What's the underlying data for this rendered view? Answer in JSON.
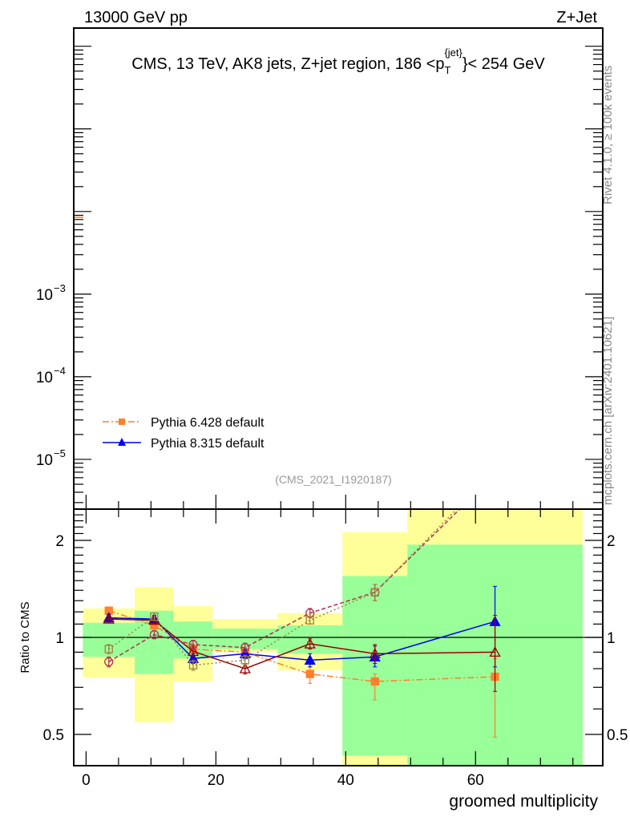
{
  "header": {
    "left": "13000 GeV pp",
    "right": "Z+Jet",
    "side_top": "Rivet 4.1.0, ≥ 100k events",
    "side_bottom": "mcplots.cern.ch [arXiv:2401.10621]"
  },
  "chart_data": {
    "type": "line",
    "title": "CMS, 13 TeV, AK8 jets, Z+jet region, 186 <p_T^{jet}< 254 GeV",
    "title_parts": {
      "pre": "CMS, 13 TeV, AK8 jets, Z+jet region, 186 <p",
      "sup": "{jet}",
      "sub": "T",
      "post": "}< 254 GeV"
    },
    "analysis_id": "(CMS_2021_I1920187)",
    "xlabel": "groomed multiplicity",
    "ylabel_ratio": "Ratio to CMS",
    "xlim": [
      -1.9,
      79.6
    ],
    "ylim_main": [
      2.5e-06,
      1.66
    ],
    "ylim_ratio": [
      0.4,
      2.5
    ],
    "x_ticks": [
      "0",
      "20",
      "40",
      "60"
    ],
    "y_ticks_main": [
      {
        "value": 0.001,
        "base": "10",
        "exp": "−3"
      },
      {
        "value": 0.0001,
        "base": "10",
        "exp": "−4"
      },
      {
        "value": 1e-05,
        "base": "10",
        "exp": "−5"
      }
    ],
    "y_ticks_ratio": [
      "0.5",
      "1",
      "2"
    ],
    "legend_position": "bottom-left",
    "bins": [
      [
        -0.5,
        7.5
      ],
      [
        7.5,
        13.5
      ],
      [
        13.5,
        19.5
      ],
      [
        19.5,
        29.5
      ],
      [
        29.5,
        39.5
      ],
      [
        39.5,
        49.5
      ],
      [
        49.5,
        76.5
      ]
    ],
    "x": [
      3.5,
      10.5,
      16.5,
      24.5,
      34.5,
      44.5,
      63
    ],
    "data_band_total": [
      [
        0.75,
        1.23
      ],
      [
        0.545,
        1.43
      ],
      [
        0.73,
        1.25
      ],
      [
        0.9,
        1.14
      ],
      [
        0.79,
        1.19
      ],
      [
        0.3,
        2.12
      ],
      [
        0.3,
        3.0
      ]
    ],
    "data_band_stat": [
      [
        0.87,
        1.11
      ],
      [
        0.77,
        1.21
      ],
      [
        0.86,
        1.12
      ],
      [
        0.92,
        1.065
      ],
      [
        0.89,
        1.09
      ],
      [
        0.43,
        1.55
      ],
      [
        0.3,
        1.94
      ]
    ],
    "band_colors": {
      "total": "#ffff99",
      "stat": "#99ff99"
    },
    "series": [
      {
        "name": "Pythia 6.428 default",
        "legend": true,
        "color": "#ff7f2a",
        "marker": "square-filled",
        "dash": "8,3,2,3",
        "values": [
          1.21,
          1.09,
          0.92,
          0.9,
          0.77,
          0.73,
          0.755
        ],
        "err": [
          [
            1.18,
            1.24
          ],
          [
            1.06,
            1.12
          ],
          [
            0.89,
            0.95
          ],
          [
            0.87,
            0.93
          ],
          [
            0.72,
            0.81
          ],
          [
            0.64,
            0.77
          ],
          [
            0.49,
            0.86
          ]
        ]
      },
      {
        "name": "Pythia 8.315 default",
        "legend": true,
        "color": "#0000ee",
        "marker": "triangle-filled",
        "dash": "",
        "values": [
          1.15,
          1.14,
          0.86,
          0.89,
          0.85,
          0.87,
          1.12
        ],
        "err": [
          [
            1.12,
            1.18
          ],
          [
            1.11,
            1.17
          ],
          [
            0.83,
            0.89
          ],
          [
            0.86,
            0.92
          ],
          [
            0.81,
            0.89
          ],
          [
            0.81,
            0.94
          ],
          [
            0.81,
            1.44
          ]
        ]
      },
      {
        "name": "",
        "legend": false,
        "color": "#990000",
        "marker": "triangle-open",
        "dash": "",
        "values": [
          1.14,
          1.13,
          0.905,
          0.8,
          0.955,
          0.89,
          0.9
        ],
        "err": [
          [
            1.11,
            1.17
          ],
          [
            1.1,
            1.16
          ],
          [
            0.87,
            0.94
          ],
          [
            0.77,
            0.83
          ],
          [
            0.92,
            0.99
          ],
          [
            0.83,
            0.95
          ],
          [
            0.68,
            1.17
          ]
        ]
      },
      {
        "name": "",
        "legend": false,
        "color": "#b03050",
        "marker": "circle-open",
        "dash": "5,3",
        "values": [
          0.84,
          1.02,
          0.95,
          0.93,
          1.19,
          1.38,
          3.2
        ],
        "err": [
          [
            0.81,
            0.87
          ],
          [
            0.99,
            1.05
          ],
          [
            0.92,
            0.98
          ],
          [
            0.9,
            0.96
          ],
          [
            1.15,
            1.23
          ],
          [
            1.3,
            1.46
          ],
          [
            3.0,
            3.4
          ]
        ]
      },
      {
        "name": "",
        "legend": false,
        "color": "#a08040",
        "marker": "square-open",
        "dash": "2,3",
        "values": [
          0.92,
          1.16,
          0.82,
          0.85,
          1.13,
          1.38,
          3.3
        ],
        "err": [
          [
            0.89,
            0.95
          ],
          [
            1.13,
            1.19
          ],
          [
            0.79,
            0.85
          ],
          [
            0.82,
            0.88
          ],
          [
            1.1,
            1.16
          ],
          [
            1.3,
            1.46
          ],
          [
            3.1,
            3.5
          ]
        ]
      }
    ],
    "main_offscale_marker": {
      "value": 0.0085,
      "color": "#ff7f2a"
    }
  }
}
